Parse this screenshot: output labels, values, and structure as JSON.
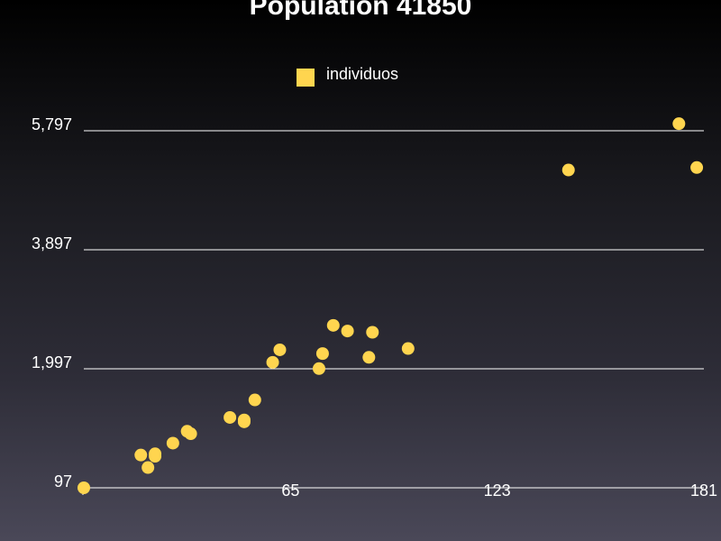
{
  "chart_data": {
    "type": "scatter",
    "title": "Population 41850",
    "xlabel": "",
    "ylabel": "",
    "xlim": [
      7,
      181
    ],
    "ylim": [
      97,
      5797
    ],
    "x_ticks": [
      65,
      123,
      181
    ],
    "x_tick_labels": [
      "65",
      "123",
      "181"
    ],
    "y_ticks": [
      97,
      1997,
      3897,
      5797
    ],
    "y_tick_labels": [
      "97",
      "1,997",
      "3,897",
      "5,797"
    ],
    "grid": true,
    "legend_position": "top-center",
    "series": [
      {
        "name": "individuos",
        "color": "#ffd54f",
        "marker": "circle",
        "points": [
          {
            "x": 7,
            "y": 97
          },
          {
            "x": 23,
            "y": 620
          },
          {
            "x": 25,
            "y": 420
          },
          {
            "x": 27,
            "y": 600
          },
          {
            "x": 27,
            "y": 640
          },
          {
            "x": 32,
            "y": 810
          },
          {
            "x": 36,
            "y": 1000
          },
          {
            "x": 37,
            "y": 960
          },
          {
            "x": 48,
            "y": 1220
          },
          {
            "x": 52,
            "y": 1180
          },
          {
            "x": 52,
            "y": 1150
          },
          {
            "x": 55,
            "y": 1500
          },
          {
            "x": 60,
            "y": 2100
          },
          {
            "x": 62,
            "y": 2300
          },
          {
            "x": 73,
            "y": 2000
          },
          {
            "x": 74,
            "y": 2240
          },
          {
            "x": 77,
            "y": 2690
          },
          {
            "x": 81,
            "y": 2600
          },
          {
            "x": 87,
            "y": 2180
          },
          {
            "x": 88,
            "y": 2580
          },
          {
            "x": 98,
            "y": 2320
          },
          {
            "x": 143,
            "y": 5170
          },
          {
            "x": 174,
            "y": 5910
          },
          {
            "x": 179,
            "y": 5210
          }
        ]
      }
    ]
  }
}
